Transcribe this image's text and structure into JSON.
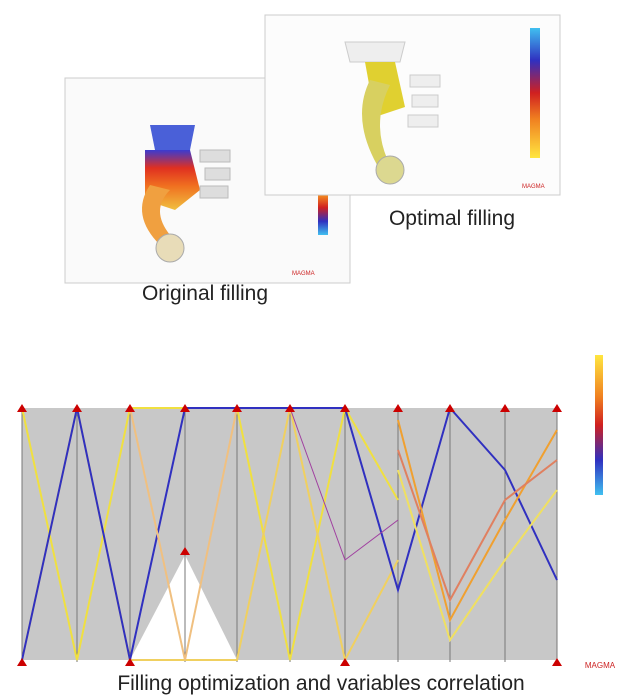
{
  "figure": {
    "captions": {
      "original": "Original filling",
      "optimal": "Optimal filling",
      "bottom": "Filling optimization and variables correlation"
    }
  }
}
